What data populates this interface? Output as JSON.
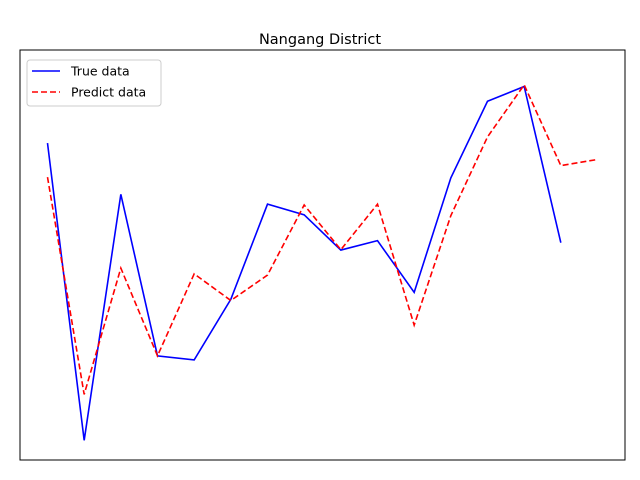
{
  "chart_data": {
    "type": "line",
    "title": "Nangang District",
    "xlabel": "",
    "ylabel": "",
    "x": [
      0,
      1,
      2,
      3,
      4,
      5,
      6,
      7,
      8,
      9,
      10,
      11,
      12,
      13,
      14,
      15
    ],
    "xlim": [
      -0.75,
      15.75
    ],
    "ylim": [
      0,
      100
    ],
    "axis_ticks": "hidden",
    "grid": false,
    "legend_position": "top-left",
    "series": [
      {
        "name": "True data",
        "color": "#0000ff",
        "linestyle": "solid",
        "x": [
          0,
          1,
          2,
          3,
          4,
          5,
          6,
          7,
          8,
          9,
          10,
          11,
          12,
          13,
          14
        ],
        "values": [
          77.3,
          4.8,
          64.8,
          25.4,
          24.4,
          39.2,
          62.4,
          59.8,
          51.2,
          53.5,
          40.9,
          68.8,
          87.5,
          91.1,
          53.0
        ]
      },
      {
        "name": "Predict data",
        "color": "#ff0000",
        "linestyle": "dashed",
        "x": [
          0,
          1,
          2,
          3,
          4,
          5,
          6,
          7,
          8,
          9,
          10,
          11,
          12,
          13,
          14,
          15
        ],
        "values": [
          69.0,
          16.0,
          46.8,
          25.4,
          45.4,
          38.9,
          45.1,
          62.2,
          51.3,
          62.4,
          32.9,
          59.6,
          78.8,
          91.5,
          71.8,
          73.3
        ]
      }
    ]
  }
}
